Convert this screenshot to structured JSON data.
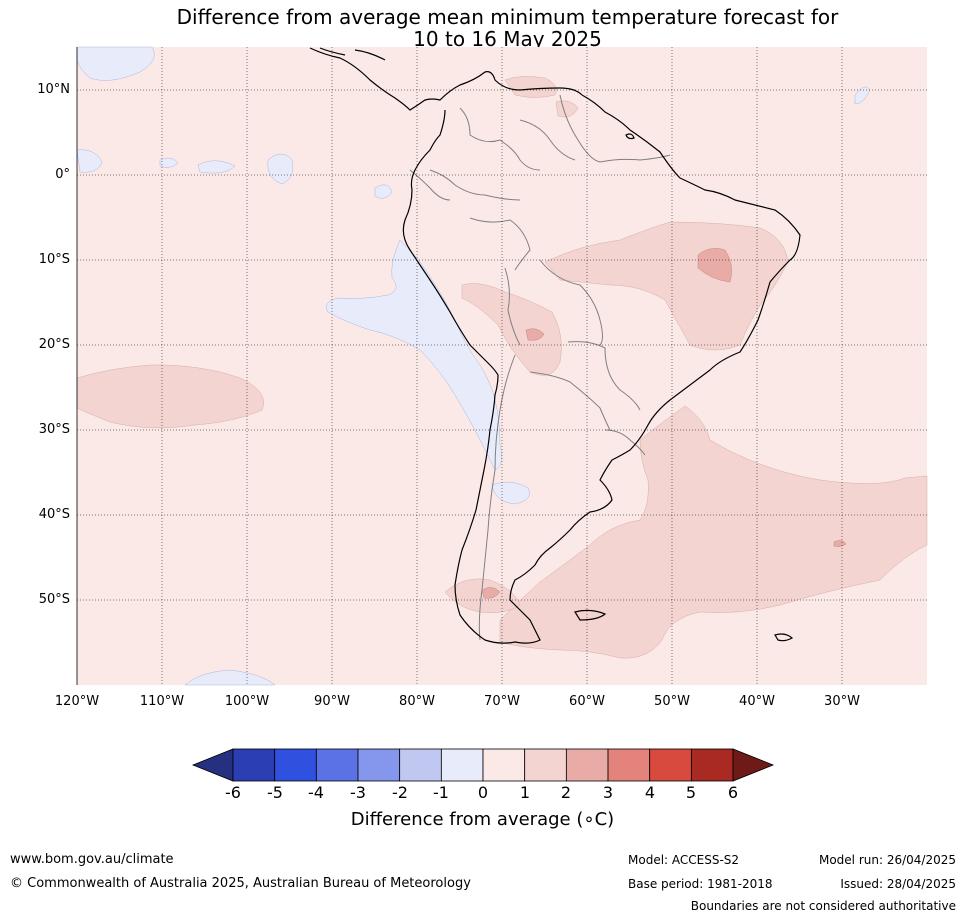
{
  "title": {
    "line1": "Difference from average mean minimum temperature forecast for",
    "line2": "10 to 16 May 2025"
  },
  "map": {
    "lat_labels": [
      "10°N",
      "0°",
      "10°S",
      "20°S",
      "30°S",
      "40°S",
      "50°S"
    ],
    "lon_labels": [
      "120°W",
      "110°W",
      "100°W",
      "90°W",
      "80°W",
      "70°W",
      "60°W",
      "50°W",
      "40°W",
      "30°W"
    ],
    "colors": {
      "background_anomaly": "#fbe9e7",
      "warm_1_2": "#f4d4d0",
      "warm_2_3": "#e9aba6",
      "cool_0_1": "#e8ecfa",
      "land_outline": "#000000",
      "border": "#808080"
    }
  },
  "colorbar": {
    "ticks": [
      "-6",
      "-5",
      "-4",
      "-3",
      "-2",
      "-1",
      "0",
      "1",
      "2",
      "3",
      "4",
      "5",
      "6"
    ],
    "colors": [
      "#253080",
      "#2b3eb4",
      "#3050e0",
      "#5a72e6",
      "#8497ec",
      "#c0c8f2",
      "#e8ecfa",
      "#fbe9e7",
      "#f4d4d0",
      "#e9aba6",
      "#e4837b",
      "#d94a3e",
      "#a82a22",
      "#6e1a16"
    ],
    "label": "Difference from average (",
    "label_unit": "∘C)"
  },
  "footer": {
    "website": "www.bom.gov.au/climate",
    "copyright": "© Commonwealth of Australia 2025, Australian Bureau of Meteorology",
    "model": "Model: ACCESS-S2",
    "base_period": "Base period: 1981-2018",
    "model_run": "Model run: 26/04/2025",
    "issued": "Issued: 28/04/2025",
    "disclaimer": "Boundaries are not considered authoritative"
  }
}
